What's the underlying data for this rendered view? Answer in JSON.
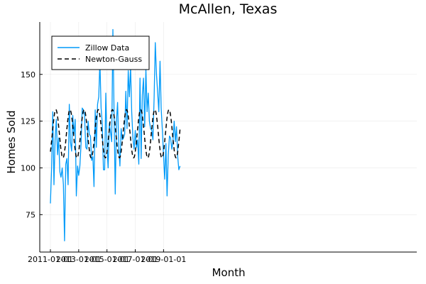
{
  "chart_data": {
    "type": "line",
    "title": "McAllen, Texas",
    "xlabel": "Month",
    "ylabel": "Homes Sold",
    "x_start": "2011-01-01",
    "x_frequency": "monthly",
    "x_ticks": [
      "2011-01-01",
      "2013-01-01",
      "2015-01-01",
      "2017-01-01",
      "2019-01-01"
    ],
    "y_ticks": [
      75,
      100,
      125,
      150
    ],
    "ylim": [
      55,
      178
    ],
    "grid": true,
    "legend_position": "top-left",
    "series": [
      {
        "name": "Zillow Data",
        "color": "#009AF9",
        "style": "solid",
        "values": [
          81,
          100,
          130,
          91,
          115,
          126,
          107,
          116,
          98,
          95,
          100,
          91,
          61,
          102,
          105,
          91,
          134,
          114,
          109,
          128,
          118,
          126,
          85,
          101,
          96,
          101,
          113,
          132,
          131,
          128,
          111,
          110,
          125,
          118,
          117,
          104,
          106,
          90,
          131,
          111,
          134,
          138,
          157,
          132,
          124,
          99,
          99,
          140,
          112,
          100,
          124,
          119,
          114,
          174,
          131,
          86,
          125,
          135,
          111,
          101,
          121,
          115,
          116,
          118,
          141,
          121,
          152,
          138,
          154,
          130,
          116,
          110,
          120,
          111,
          115,
          102,
          148,
          105,
          139,
          148,
          122,
          153,
          130,
          140,
          125,
          121,
          120,
          115,
          138,
          167,
          150,
          140,
          130,
          157,
          132,
          120,
          106,
          94,
          113,
          85,
          107,
          117,
          116,
          110,
          114,
          125,
          114,
          122,
          106,
          99,
          101
        ]
      },
      {
        "name": "Newton-Gauss",
        "color": "#000000",
        "style": "dashed",
        "model": {
          "mean": 118.25,
          "amplitude": 12.9,
          "period_months": 12,
          "peak_month": 4.6
        }
      }
    ]
  }
}
